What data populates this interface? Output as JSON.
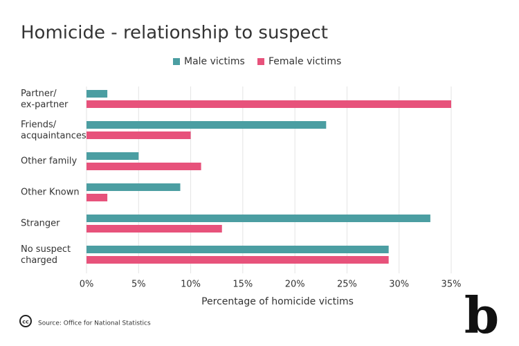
{
  "chart_data": {
    "type": "bar",
    "orientation": "horizontal",
    "title": "Homicide - relationship to suspect",
    "categories": [
      "Partner/\nex-partner",
      "Friends/\nacquaintances",
      "Other family",
      "Other Known",
      "Stranger",
      "No suspect\ncharged"
    ],
    "series": [
      {
        "name": "Male victims",
        "color": "#4b9ea2",
        "values": [
          2,
          23,
          5,
          9,
          33,
          29
        ]
      },
      {
        "name": "Female victims",
        "color": "#e7527b",
        "values": [
          35,
          10,
          11,
          2,
          13,
          29
        ]
      }
    ],
    "xlim": [
      0,
      35
    ],
    "xticks": [
      {
        "value": 0,
        "label": "0%"
      },
      {
        "value": 5,
        "label": "5%"
      },
      {
        "value": 10,
        "label": "10%"
      },
      {
        "value": 15,
        "label": "15%"
      },
      {
        "value": 20,
        "label": "20%"
      },
      {
        "value": 25,
        "label": "25%"
      },
      {
        "value": 30,
        "label": "30%"
      },
      {
        "value": 35,
        "label": "35%"
      }
    ],
    "xlabel": "Percentage of homicide victims",
    "grid": true,
    "source": "Source: Office for National Statistics",
    "license_badge": "cc",
    "logo": "b"
  }
}
